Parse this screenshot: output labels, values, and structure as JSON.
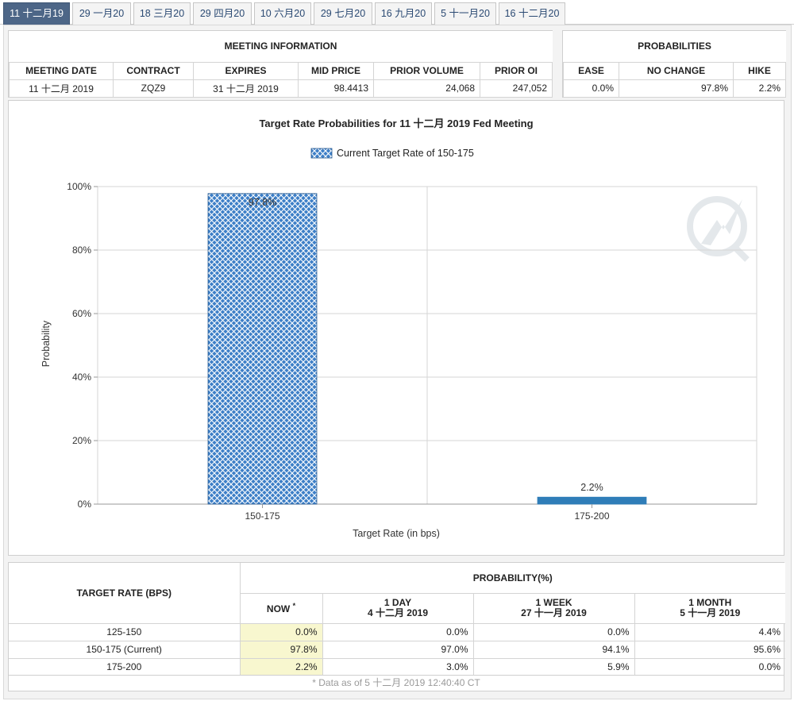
{
  "tabs": [
    {
      "label": "11 十二月19",
      "active": true
    },
    {
      "label": "29 一月20"
    },
    {
      "label": "18 三月20"
    },
    {
      "label": "29 四月20"
    },
    {
      "label": "10 六月20"
    },
    {
      "label": "29 七月20"
    },
    {
      "label": "16 九月20"
    },
    {
      "label": "5 十一月20"
    },
    {
      "label": "16 十二月20"
    }
  ],
  "meeting": {
    "title": "MEETING INFORMATION",
    "headers": [
      "MEETING DATE",
      "CONTRACT",
      "EXPIRES",
      "MID PRICE",
      "PRIOR VOLUME",
      "PRIOR OI"
    ],
    "values": [
      "11 十二月 2019",
      "ZQZ9",
      "31 十二月 2019",
      "98.4413",
      "24,068",
      "247,052"
    ]
  },
  "probabilities": {
    "title": "PROBABILITIES",
    "headers": [
      "EASE",
      "NO CHANGE",
      "HIKE"
    ],
    "values": [
      "0.0%",
      "97.8%",
      "2.2%"
    ]
  },
  "chart_data": {
    "type": "bar",
    "title": "Target Rate Probabilities for 11 十二月 2019 Fed Meeting",
    "legend": {
      "label": "Current Target Rate of 150-175",
      "position": "top-center"
    },
    "categories": [
      "150-175",
      "175-200"
    ],
    "values": [
      97.8,
      2.2
    ],
    "data_labels": [
      "97.8%",
      "2.2%"
    ],
    "xlabel": "Target Rate (in bps)",
    "ylabel": "Probability",
    "ylim": [
      0,
      100
    ],
    "yticks": [
      "0%",
      "20%",
      "40%",
      "60%",
      "80%",
      "100%"
    ],
    "grid": true,
    "colors": {
      "current": "#4a86c8",
      "other": "#2f7db8"
    }
  },
  "bottom": {
    "target_rate_header": "TARGET RATE (BPS)",
    "probability_header": "PROBABILITY(%)",
    "now_label": "NOW",
    "now_mark": "*",
    "cols": [
      {
        "line1": "1 DAY",
        "line2": "4 十二月 2019"
      },
      {
        "line1": "1 WEEK",
        "line2": "27 十一月 2019"
      },
      {
        "line1": "1 MONTH",
        "line2": "5 十一月 2019"
      }
    ],
    "rows": [
      {
        "rate": "125-150",
        "now": "0.0%",
        "day": "0.0%",
        "week": "0.0%",
        "month": "4.4%"
      },
      {
        "rate": "150-175 (Current)",
        "now": "97.8%",
        "day": "97.0%",
        "week": "94.1%",
        "month": "95.6%"
      },
      {
        "rate": "175-200",
        "now": "2.2%",
        "day": "3.0%",
        "week": "5.9%",
        "month": "0.0%"
      }
    ],
    "footnote": "* Data as of 5 十二月 2019 12:40:40 CT"
  }
}
